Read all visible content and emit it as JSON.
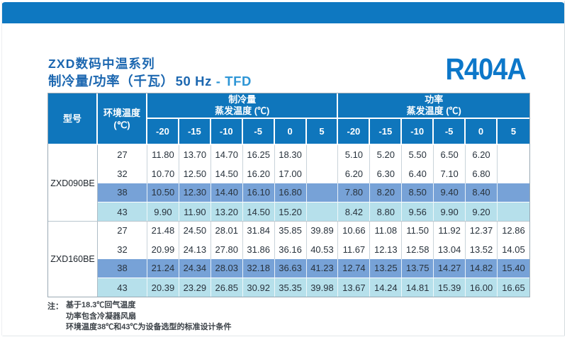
{
  "title": {
    "line1": "ZXD数码中温系列",
    "line2_main": "制冷量/功率（千瓦）",
    "line2_freq": "50 Hz",
    "line2_sep": "-",
    "line2_suffix": "TFD",
    "refrigerant": "R404A"
  },
  "table": {
    "col_model": "型号",
    "col_ambient_l1": "环境温度",
    "col_ambient_l2": "(℃)",
    "group_capacity_title": "制冷量",
    "group_capacity_subtitle": "蒸发温度 (℃)",
    "group_power_title": "功率",
    "group_power_subtitle": "蒸发温度 (℃)",
    "evap_temps": [
      "-20",
      "-15",
      "-10",
      "-5",
      "0",
      "5"
    ],
    "sections": [
      {
        "model": "ZXD090BE",
        "rows": [
          {
            "ambient": "27",
            "highlight": "none",
            "capacity": [
              "11.80",
              "13.70",
              "14.70",
              "16.25",
              "18.30",
              ""
            ],
            "power": [
              "5.10",
              "5.20",
              "5.50",
              "6.50",
              "6.20",
              ""
            ]
          },
          {
            "ambient": "32",
            "highlight": "none",
            "capacity": [
              "10.70",
              "12.50",
              "14.50",
              "16.20",
              "17.00",
              ""
            ],
            "power": [
              "6.20",
              "6.30",
              "6.40",
              "7.10",
              "6.80",
              ""
            ]
          },
          {
            "ambient": "38",
            "highlight": "strong",
            "capacity": [
              "10.50",
              "12.30",
              "14.40",
              "16.10",
              "16.80",
              ""
            ],
            "power": [
              "7.80",
              "8.20",
              "8.50",
              "9.40",
              "8.40",
              ""
            ]
          },
          {
            "ambient": "43",
            "highlight": "light",
            "capacity": [
              "9.90",
              "11.90",
              "13.20",
              "14.50",
              "15.20",
              ""
            ],
            "power": [
              "8.42",
              "8.80",
              "9.56",
              "9.90",
              "9.20",
              ""
            ]
          }
        ]
      },
      {
        "model": "ZXD160BE",
        "rows": [
          {
            "ambient": "27",
            "highlight": "none",
            "capacity": [
              "21.48",
              "24.50",
              "28.01",
              "31.84",
              "35.85",
              "39.89"
            ],
            "power": [
              "10.66",
              "11.08",
              "11.50",
              "11.92",
              "12.37",
              "12.86"
            ]
          },
          {
            "ambient": "32",
            "highlight": "none",
            "capacity": [
              "20.99",
              "24.13",
              "27.80",
              "31.86",
              "36.16",
              "40.53"
            ],
            "power": [
              "11.67",
              "12.13",
              "12.58",
              "13.04",
              "13.52",
              "14.05"
            ]
          },
          {
            "ambient": "38",
            "highlight": "strong",
            "capacity": [
              "21.24",
              "24.34",
              "28.03",
              "32.18",
              "36.63",
              "41.23"
            ],
            "power": [
              "12.74",
              "13.25",
              "13.75",
              "14.27",
              "14.82",
              "15.40"
            ]
          },
          {
            "ambient": "43",
            "highlight": "light",
            "capacity": [
              "20.39",
              "23.29",
              "26.85",
              "30.92",
              "35.35",
              "39.98"
            ],
            "power": [
              "13.67",
              "14.24",
              "14.81",
              "15.39",
              "16.00",
              "16.65"
            ]
          }
        ]
      }
    ]
  },
  "notes": {
    "label": "注：",
    "lines": [
      "基于18.3℃回气温度",
      "功率包含冷凝器风扇",
      "环境温度38℃和43℃为设备选型的标准设计条件"
    ]
  },
  "colors": {
    "top_bar": "#0E78C1",
    "header_blue": "#0F76BC",
    "title_blue": "#1C67B0",
    "accent_blue": "#0C77C9",
    "suffix_blue": "#2E96D6",
    "row_38_highlight": "#77A2D7",
    "row_43_highlight": "#B6E0EB"
  }
}
